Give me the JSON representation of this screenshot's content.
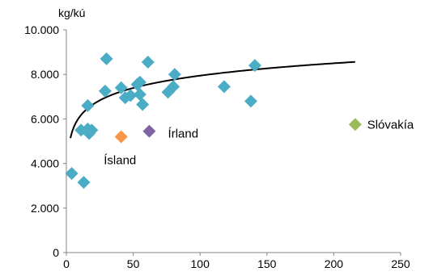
{
  "chart_data": {
    "type": "scatter",
    "title": "",
    "ylabel": "kg/kú",
    "xlabel": "",
    "xlim": [
      0,
      250
    ],
    "ylim": [
      0,
      10000
    ],
    "x_ticks": [
      {
        "value": 0,
        "label": "0"
      },
      {
        "value": 50,
        "label": "50"
      },
      {
        "value": 100,
        "label": "100"
      },
      {
        "value": 150,
        "label": "150"
      },
      {
        "value": 200,
        "label": "200"
      },
      {
        "value": 250,
        "label": "250"
      }
    ],
    "y_ticks": [
      {
        "value": 0,
        "label": "0"
      },
      {
        "value": 2000,
        "label": "2.000"
      },
      {
        "value": 4000,
        "label": "4.000"
      },
      {
        "value": 6000,
        "label": "6.000"
      },
      {
        "value": 8000,
        "label": "8.000"
      },
      {
        "value": 10000,
        "label": "10.000"
      }
    ],
    "grid": false,
    "colors": {
      "default": "#4bacc6",
      "iceland": "#f79646",
      "ireland": "#8064a2",
      "slovakia": "#9bbb59",
      "trend": "#000000"
    },
    "series": [
      {
        "color_key": "default",
        "points": [
          {
            "x": 4,
            "y": 3550
          },
          {
            "x": 13,
            "y": 3150
          },
          {
            "x": 11,
            "y": 5500
          },
          {
            "x": 16,
            "y": 5550
          },
          {
            "x": 17,
            "y": 5350
          },
          {
            "x": 19,
            "y": 5500
          },
          {
            "x": 16,
            "y": 6600
          },
          {
            "x": 29,
            "y": 7250
          },
          {
            "x": 30,
            "y": 8700
          },
          {
            "x": 41,
            "y": 7400
          },
          {
            "x": 44,
            "y": 6950
          },
          {
            "x": 48,
            "y": 7050
          },
          {
            "x": 53,
            "y": 7550
          },
          {
            "x": 55,
            "y": 7650
          },
          {
            "x": 55,
            "y": 7100
          },
          {
            "x": 57,
            "y": 6650
          },
          {
            "x": 61,
            "y": 8550
          },
          {
            "x": 76,
            "y": 7200
          },
          {
            "x": 80,
            "y": 7450
          },
          {
            "x": 81,
            "y": 8000
          },
          {
            "x": 118,
            "y": 7450
          },
          {
            "x": 138,
            "y": 6800
          },
          {
            "x": 141,
            "y": 8400
          }
        ]
      },
      {
        "color_key": "iceland",
        "points": [
          {
            "x": 41,
            "y": 5200
          }
        ]
      },
      {
        "color_key": "ireland",
        "points": [
          {
            "x": 62,
            "y": 5450
          }
        ]
      },
      {
        "color_key": "slovakia",
        "points": [
          {
            "x": 216,
            "y": 5750
          }
        ]
      }
    ],
    "trendline": {
      "type": "logarithmic",
      "a": 4260,
      "b": 800,
      "x_range": [
        3,
        216
      ]
    },
    "annotations": [
      {
        "text": "Ísland",
        "x": 28,
        "y": 4150
      },
      {
        "text": "Írland",
        "x": 76,
        "y": 5350
      },
      {
        "text": "Slóvakía",
        "x": 225,
        "y": 5750
      }
    ]
  }
}
